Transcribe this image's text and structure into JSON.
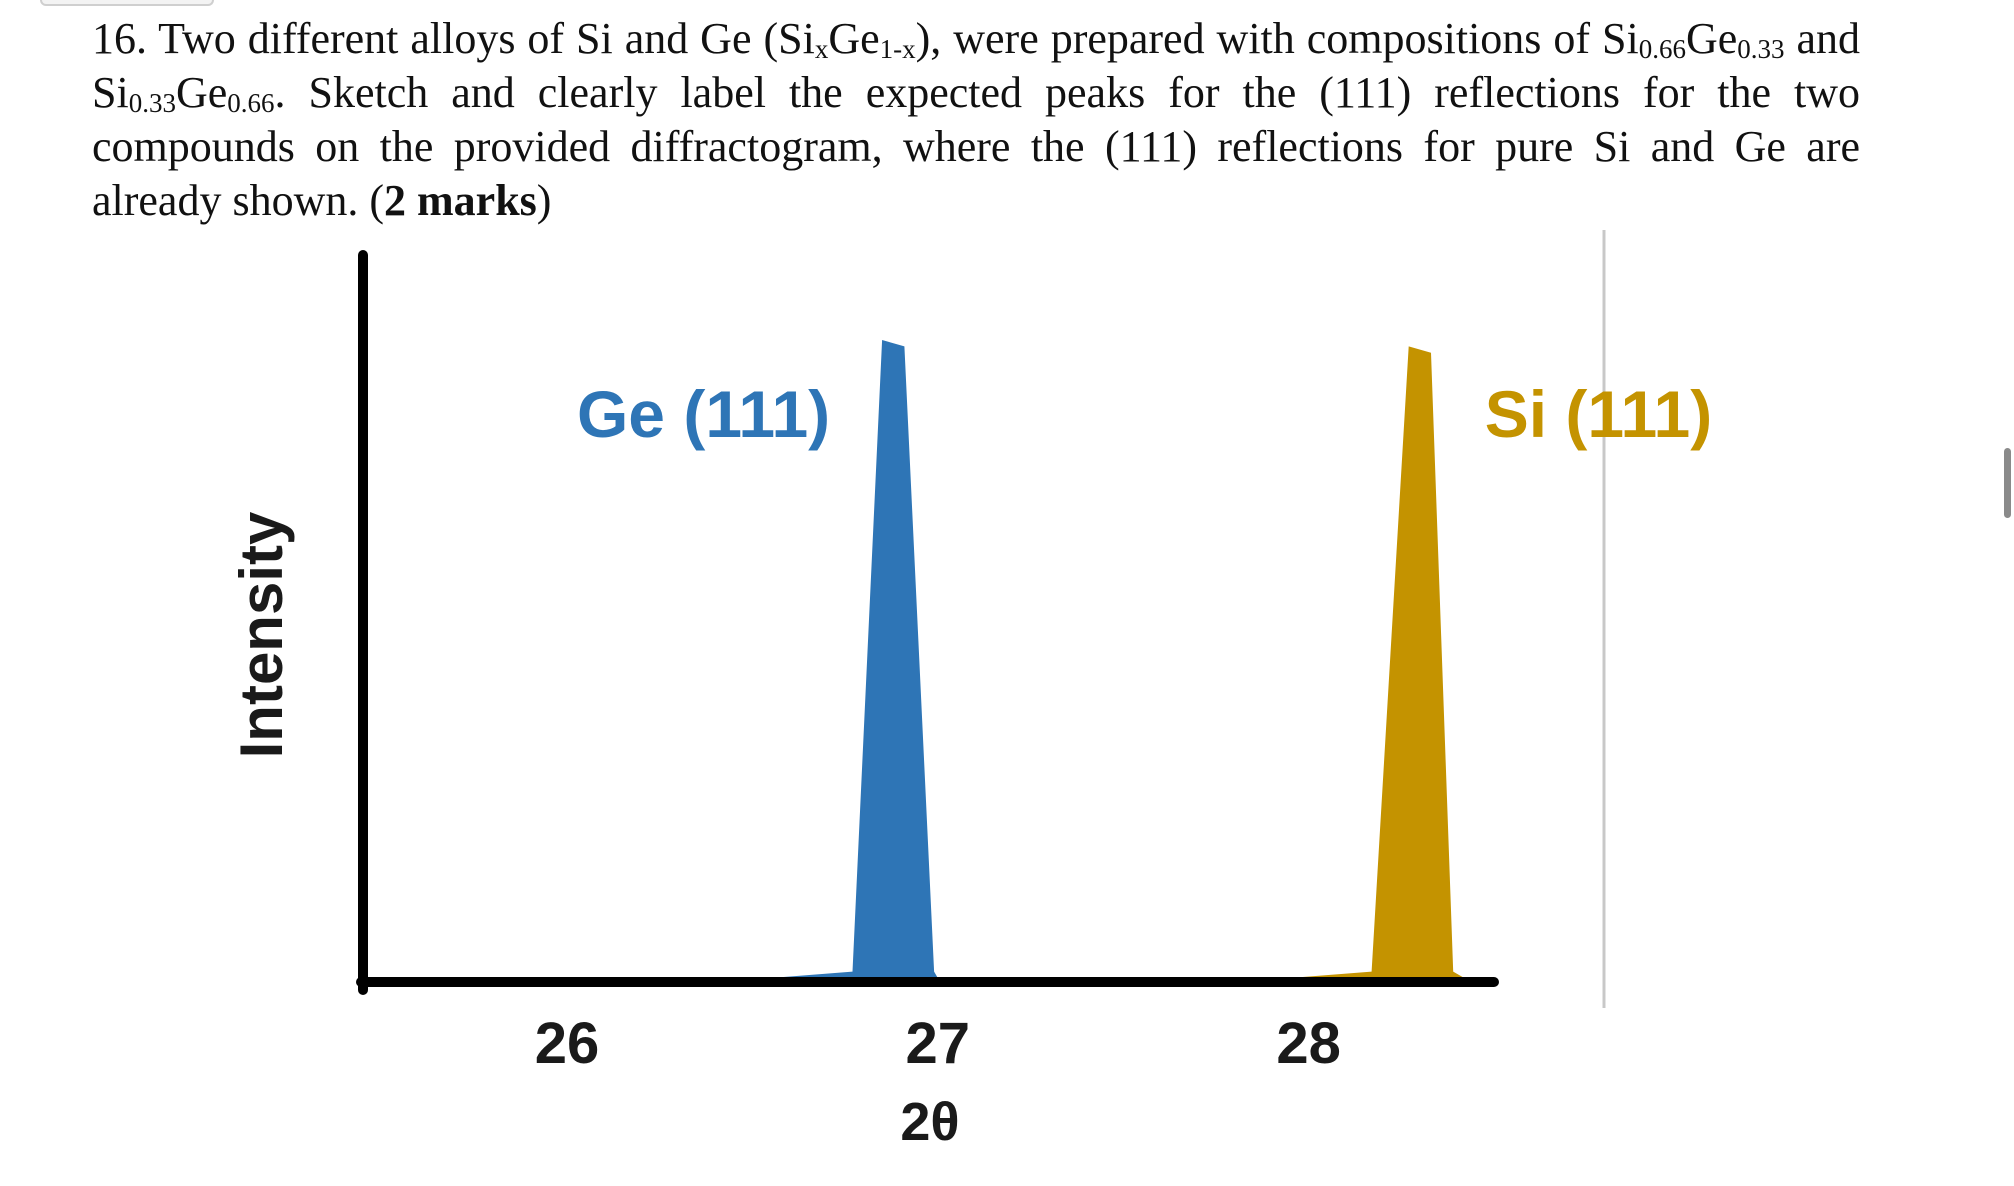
{
  "question": {
    "number": "16.",
    "t1": " Two different alloys of Si and Ge (Si",
    "s1": "x",
    "t2": "Ge",
    "s2": "1-x",
    "t3": "), were prepared with compositions of Si",
    "s3": "0.66",
    "t4": "Ge",
    "s4": "0.33",
    "t5": " and Si",
    "s5": "0.33",
    "t6": "Ge",
    "s6": "0.66",
    "t7": ". Sketch and clearly label the expected peaks for the (111) reflections for the two compounds on the provided diffractogram, where the (111) reflections for pure Si and Ge are already shown. (",
    "marks": "2 marks",
    "t8": ")"
  },
  "colors": {
    "ge_peak": "#2e75b6",
    "si_peak": "#c49300",
    "axis": "#000000",
    "divider": "#c8c8c8"
  },
  "chart_data": {
    "type": "area",
    "xlabel": "2θ",
    "ylabel": "Intensity",
    "x_ticks": [
      26,
      27,
      28
    ],
    "xlim": [
      25.45,
      28.5
    ],
    "grid": false,
    "series": [
      {
        "name": "Ge (111)",
        "color": "#2e75b6",
        "label_position": "left-of-peak",
        "points": [
          [
            26.55,
            0
          ],
          [
            26.77,
            0.01
          ],
          [
            26.85,
            1.0
          ],
          [
            26.91,
            0.99
          ],
          [
            26.99,
            0.01
          ],
          [
            27.0,
            0
          ]
        ]
      },
      {
        "name": "Si (111)",
        "color": "#c49300",
        "label_position": "right-of-peak",
        "points": [
          [
            27.95,
            0
          ],
          [
            28.17,
            0.01
          ],
          [
            28.27,
            0.99
          ],
          [
            28.33,
            0.98
          ],
          [
            28.39,
            0.01
          ],
          [
            28.42,
            0
          ]
        ]
      }
    ]
  }
}
